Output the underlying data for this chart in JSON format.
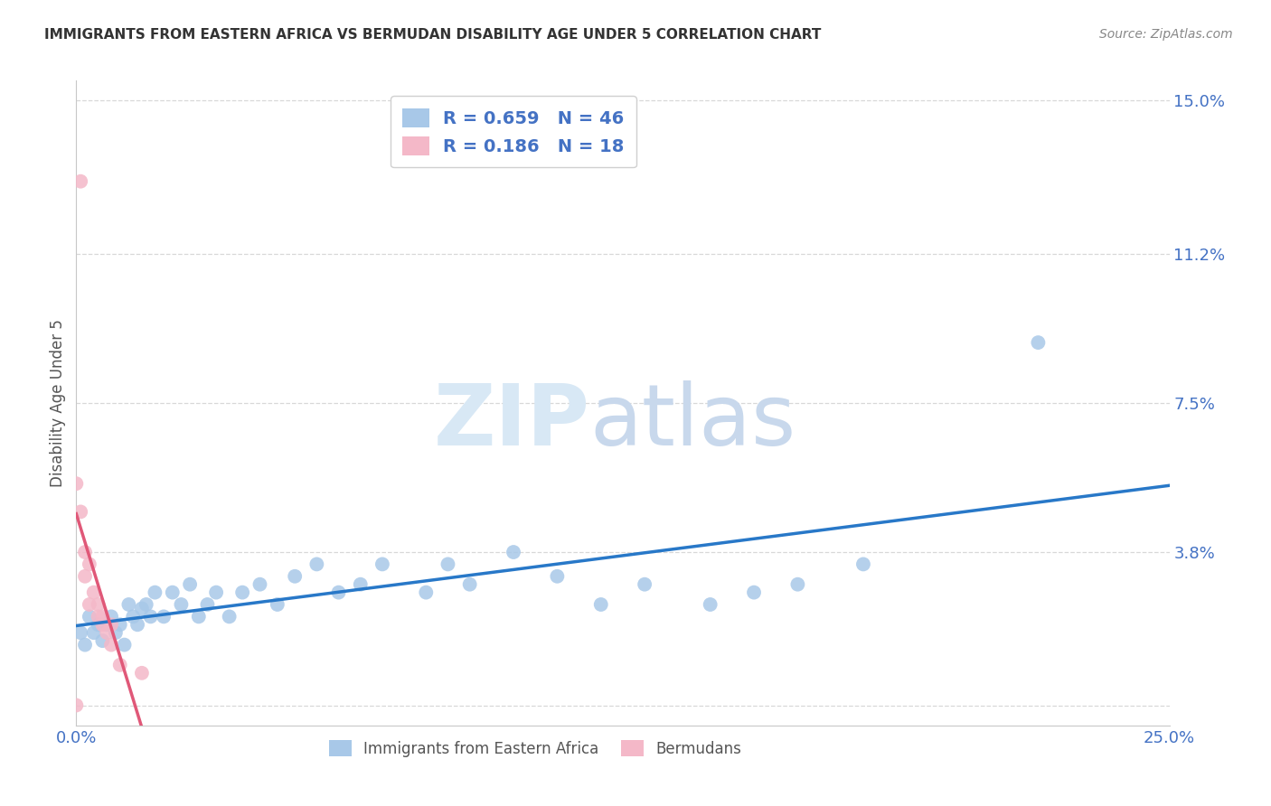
{
  "title": "IMMIGRANTS FROM EASTERN AFRICA VS BERMUDAN DISABILITY AGE UNDER 5 CORRELATION CHART",
  "source": "Source: ZipAtlas.com",
  "ylabel": "Disability Age Under 5",
  "xlim": [
    0.0,
    0.25
  ],
  "ylim": [
    -0.005,
    0.155
  ],
  "ytick_vals": [
    0.0,
    0.038,
    0.075,
    0.112,
    0.15
  ],
  "ytick_labels": [
    "",
    "3.8%",
    "7.5%",
    "11.2%",
    "15.0%"
  ],
  "xtick_vals": [
    0.0,
    0.0625,
    0.125,
    0.1875,
    0.25
  ],
  "xtick_labels": [
    "0.0%",
    "",
    "",
    "",
    "25.0%"
  ],
  "blue_R": 0.659,
  "blue_N": 46,
  "pink_R": 0.186,
  "pink_N": 18,
  "blue_color": "#a8c8e8",
  "pink_color": "#f4b8c8",
  "blue_line_color": "#2878c8",
  "pink_line_color": "#e05878",
  "blue_scatter_x": [
    0.001,
    0.002,
    0.003,
    0.004,
    0.005,
    0.006,
    0.007,
    0.008,
    0.009,
    0.01,
    0.011,
    0.012,
    0.013,
    0.014,
    0.015,
    0.016,
    0.017,
    0.018,
    0.02,
    0.022,
    0.024,
    0.026,
    0.028,
    0.03,
    0.032,
    0.035,
    0.038,
    0.042,
    0.046,
    0.05,
    0.055,
    0.06,
    0.065,
    0.07,
    0.08,
    0.085,
    0.09,
    0.1,
    0.11,
    0.12,
    0.13,
    0.145,
    0.155,
    0.165,
    0.18,
    0.22
  ],
  "blue_scatter_y": [
    0.018,
    0.015,
    0.022,
    0.018,
    0.02,
    0.016,
    0.02,
    0.022,
    0.018,
    0.02,
    0.015,
    0.025,
    0.022,
    0.02,
    0.024,
    0.025,
    0.022,
    0.028,
    0.022,
    0.028,
    0.025,
    0.03,
    0.022,
    0.025,
    0.028,
    0.022,
    0.028,
    0.03,
    0.025,
    0.032,
    0.035,
    0.028,
    0.03,
    0.035,
    0.028,
    0.035,
    0.03,
    0.038,
    0.032,
    0.025,
    0.03,
    0.025,
    0.028,
    0.03,
    0.035,
    0.09
  ],
  "pink_scatter_x": [
    0.0,
    0.001,
    0.001,
    0.002,
    0.002,
    0.003,
    0.003,
    0.004,
    0.005,
    0.005,
    0.006,
    0.006,
    0.007,
    0.008,
    0.008,
    0.01,
    0.015,
    0.0
  ],
  "pink_scatter_y": [
    0.055,
    0.13,
    0.048,
    0.038,
    0.032,
    0.035,
    0.025,
    0.028,
    0.022,
    0.025,
    0.02,
    0.022,
    0.018,
    0.015,
    0.02,
    0.01,
    0.008,
    0.0
  ],
  "watermark_zip": "ZIP",
  "watermark_atlas": "atlas",
  "watermark_color": "#d8e8f5",
  "grid_color": "#d8d8d8",
  "background_color": "#ffffff",
  "legend_text_color": "#4472c4",
  "tick_color": "#4472c4"
}
